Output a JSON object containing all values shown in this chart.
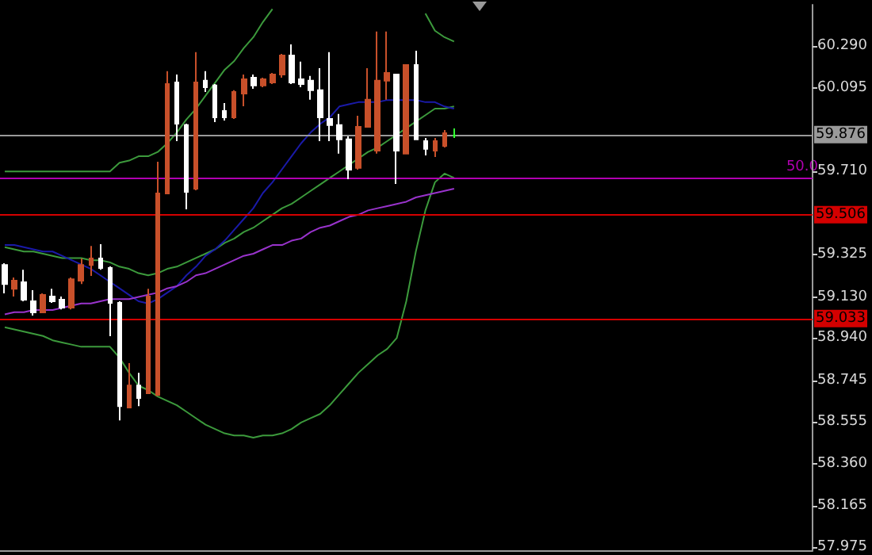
{
  "chart_data": {
    "type": "candlestick",
    "categories": [
      null,
      null,
      null,
      null,
      null,
      null,
      null,
      null,
      null,
      null,
      null,
      null,
      null,
      null,
      null,
      null,
      null,
      null,
      null,
      null,
      null,
      null,
      null,
      null,
      null,
      null,
      null,
      null,
      null,
      null,
      null,
      null,
      null,
      null,
      null,
      null,
      null,
      null,
      null,
      null,
      null,
      null,
      null,
      null,
      null,
      null,
      null,
      null
    ],
    "ohlc": [
      [
        59.278,
        59.286,
        59.147,
        59.19
      ],
      [
        59.168,
        59.22,
        59.132,
        59.205
      ],
      [
        59.198,
        59.256,
        59.11,
        59.117
      ],
      [
        59.11,
        59.161,
        59.044,
        59.059
      ],
      [
        59.059,
        59.147,
        59.059,
        59.139
      ],
      [
        59.132,
        59.168,
        59.103,
        59.11
      ],
      [
        59.117,
        59.132,
        59.073,
        59.081
      ],
      [
        59.081,
        59.22,
        59.073,
        59.212
      ],
      [
        59.205,
        59.308,
        59.19,
        59.278
      ],
      [
        59.278,
        59.366,
        59.227,
        59.308
      ],
      [
        59.308,
        59.374,
        59.256,
        59.264
      ],
      [
        59.264,
        59.271,
        58.949,
        59.103
      ],
      [
        59.103,
        59.11,
        58.56,
        58.626
      ],
      [
        58.619,
        58.824,
        58.619,
        58.721
      ],
      [
        58.721,
        58.78,
        58.626,
        58.663
      ],
      [
        58.685,
        59.168,
        58.685,
        59.132
      ],
      [
        58.677,
        59.755,
        58.677,
        59.608
      ],
      [
        59.608,
        60.173,
        59.608,
        60.114
      ],
      [
        60.121,
        60.158,
        59.85,
        59.931
      ],
      [
        59.924,
        59.931,
        59.535,
        59.616
      ],
      [
        59.63,
        60.261,
        59.623,
        60.121
      ],
      [
        60.129,
        60.173,
        60.077,
        60.099
      ],
      [
        60.107,
        60.114,
        59.938,
        59.96
      ],
      [
        59.989,
        60.026,
        59.945,
        59.96
      ],
      [
        59.96,
        60.085,
        59.953,
        60.077
      ],
      [
        60.07,
        60.158,
        60.011,
        60.136
      ],
      [
        60.143,
        60.158,
        60.092,
        60.107
      ],
      [
        60.107,
        60.143,
        60.099,
        60.136
      ],
      [
        60.121,
        60.165,
        60.114,
        60.158
      ],
      [
        60.158,
        60.253,
        60.143,
        60.246
      ],
      [
        60.246,
        60.297,
        60.114,
        60.121
      ],
      [
        60.136,
        60.217,
        60.099,
        60.114
      ],
      [
        60.129,
        60.151,
        60.041,
        60.085
      ],
      [
        60.085,
        60.187,
        59.85,
        59.96
      ],
      [
        59.953,
        60.261,
        59.85,
        59.924
      ],
      [
        59.924,
        59.975,
        59.792,
        59.858
      ],
      [
        59.858,
        59.872,
        59.674,
        59.718
      ],
      [
        59.726,
        59.967,
        59.718,
        59.916
      ],
      [
        59.916,
        60.187,
        59.916,
        60.041
      ],
      [
        59.806,
        60.356,
        59.792,
        60.129
      ],
      [
        60.129,
        60.356,
        60.041,
        60.165
      ],
      [
        60.158,
        60.158,
        59.652,
        59.806
      ],
      [
        59.792,
        60.202,
        59.792,
        60.202
      ],
      [
        60.202,
        60.268,
        59.858,
        59.858
      ],
      [
        59.85,
        59.865,
        59.784,
        59.814
      ],
      [
        59.806,
        59.865,
        59.777,
        59.85
      ],
      [
        59.828,
        59.901,
        59.821,
        59.887
      ],
      [
        59.876,
        59.909,
        59.865,
        59.876
      ]
    ],
    "colors": [
      "#ffffff",
      "#c8502a",
      "#ffffff",
      "#ffffff",
      "#c8502a",
      "#ffffff",
      "#ffffff",
      "#c8502a",
      "#c8502a",
      "#c8502a",
      "#ffffff",
      "#ffffff",
      "#ffffff",
      "#c8502a",
      "#ffffff",
      "#c8502a",
      "#c8502a",
      "#c8502a",
      "#ffffff",
      "#ffffff",
      "#c8502a",
      "#ffffff",
      "#ffffff",
      "#ffffff",
      "#c8502a",
      "#c8502a",
      "#ffffff",
      "#c8502a",
      "#c8502a",
      "#c8502a",
      "#ffffff",
      "#ffffff",
      "#ffffff",
      "#ffffff",
      "#ffffff",
      "#ffffff",
      "#ffffff",
      "#c8502a",
      "#c8502a",
      "#c8502a",
      "#c8502a",
      "#ffffff",
      "#c8502a",
      "#ffffff",
      "#ffffff",
      "#c8502a",
      "#c8502a",
      "#33ff33"
    ],
    "series": [
      {
        "type": "line",
        "color": "#3c9a3c",
        "values": [
          59.71,
          59.71,
          59.71,
          59.71,
          59.71,
          59.71,
          59.71,
          59.71,
          59.71,
          59.71,
          59.71,
          59.71,
          59.75,
          59.76,
          59.78,
          59.78,
          59.8,
          59.84,
          59.89,
          59.95,
          60.0,
          60.06,
          60.12,
          60.18,
          60.22,
          60.28,
          60.33,
          60.4,
          60.46,
          null,
          null,
          null,
          null,
          null,
          null,
          null,
          null,
          null,
          null,
          null,
          null,
          null,
          null,
          null,
          60.44,
          60.36,
          60.33,
          60.31
        ]
      },
      {
        "type": "line",
        "color": "#3c9a3c",
        "values": [
          59.36,
          59.35,
          59.34,
          59.34,
          59.33,
          59.32,
          59.31,
          59.31,
          59.31,
          59.3,
          59.3,
          59.29,
          59.27,
          59.26,
          59.24,
          59.23,
          59.24,
          59.26,
          59.27,
          59.29,
          59.31,
          59.33,
          59.35,
          59.38,
          59.4,
          59.43,
          59.45,
          59.48,
          59.51,
          59.54,
          59.56,
          59.59,
          59.62,
          59.65,
          59.68,
          59.71,
          59.74,
          59.77,
          59.8,
          59.82,
          59.85,
          59.88,
          59.91,
          59.94,
          59.97,
          60.0,
          60.0,
          60.01
        ]
      },
      {
        "type": "line",
        "color": "#3c9a3c",
        "values": [
          58.99,
          58.98,
          58.97,
          58.96,
          58.95,
          58.93,
          58.92,
          58.91,
          58.9,
          58.9,
          58.9,
          58.9,
          58.85,
          58.78,
          58.72,
          58.7,
          58.67,
          58.65,
          58.63,
          58.6,
          58.57,
          58.54,
          58.52,
          58.5,
          58.49,
          58.49,
          58.48,
          58.49,
          58.49,
          58.5,
          58.52,
          58.55,
          58.57,
          58.59,
          58.63,
          58.68,
          58.73,
          58.78,
          58.82,
          58.86,
          58.89,
          58.94,
          59.11,
          59.34,
          59.53,
          59.66,
          59.7,
          59.68
        ]
      },
      {
        "type": "line",
        "color": "#1a1aa8",
        "values": [
          59.37,
          59.37,
          59.36,
          59.35,
          59.34,
          59.34,
          59.32,
          59.3,
          59.28,
          59.26,
          59.23,
          59.2,
          59.17,
          59.14,
          59.11,
          59.1,
          59.12,
          59.15,
          59.18,
          59.23,
          59.27,
          59.32,
          59.35,
          59.39,
          59.44,
          59.49,
          59.54,
          59.61,
          59.66,
          59.72,
          59.78,
          59.84,
          59.89,
          59.93,
          59.96,
          60.01,
          60.02,
          60.03,
          60.03,
          60.03,
          60.04,
          60.04,
          60.04,
          60.04,
          60.03,
          60.03,
          60.01,
          60.0
        ]
      },
      {
        "type": "line",
        "color": "#9933cc",
        "values": [
          59.05,
          59.06,
          59.06,
          59.07,
          59.07,
          59.07,
          59.08,
          59.09,
          59.1,
          59.1,
          59.11,
          59.12,
          59.12,
          59.12,
          59.13,
          59.14,
          59.15,
          59.17,
          59.18,
          59.2,
          59.23,
          59.24,
          59.26,
          59.28,
          59.3,
          59.32,
          59.33,
          59.35,
          59.37,
          59.37,
          59.39,
          59.4,
          59.43,
          59.45,
          59.46,
          59.48,
          59.5,
          59.51,
          59.53,
          59.54,
          59.55,
          59.56,
          59.57,
          59.59,
          59.6,
          59.61,
          59.62,
          59.63
        ]
      }
    ],
    "ylim": [
      57.96,
      60.48
    ],
    "yticks": [
      {
        "value": 60.29,
        "label": "60.290"
      },
      {
        "value": 60.095,
        "label": "60.095"
      },
      {
        "value": 59.71,
        "label": "59.710"
      },
      {
        "value": 59.325,
        "label": "59.325"
      },
      {
        "value": 59.13,
        "label": "59.130"
      },
      {
        "value": 58.94,
        "label": "58.940"
      },
      {
        "value": 58.745,
        "label": "58.745"
      },
      {
        "value": 58.555,
        "label": "58.555"
      },
      {
        "value": 58.36,
        "label": "58.360"
      },
      {
        "value": 58.165,
        "label": "58.165"
      },
      {
        "value": 57.975,
        "label": "57.975"
      }
    ],
    "ref_lines": [
      {
        "axis": "y",
        "value": 59.876,
        "label": "59.876",
        "color": "#9a9a9a"
      },
      {
        "axis": "y",
        "value": 59.682,
        "color": "#b000b0"
      },
      {
        "axis": "y",
        "value": 59.506,
        "label": "59.506",
        "color": "#d40000"
      },
      {
        "axis": "y",
        "value": 59.033,
        "label": "59.033",
        "color": "#d40000"
      }
    ],
    "annotations": [
      {
        "text": "50.0",
        "y": 59.682
      }
    ],
    "tick_labels": "y"
  }
}
